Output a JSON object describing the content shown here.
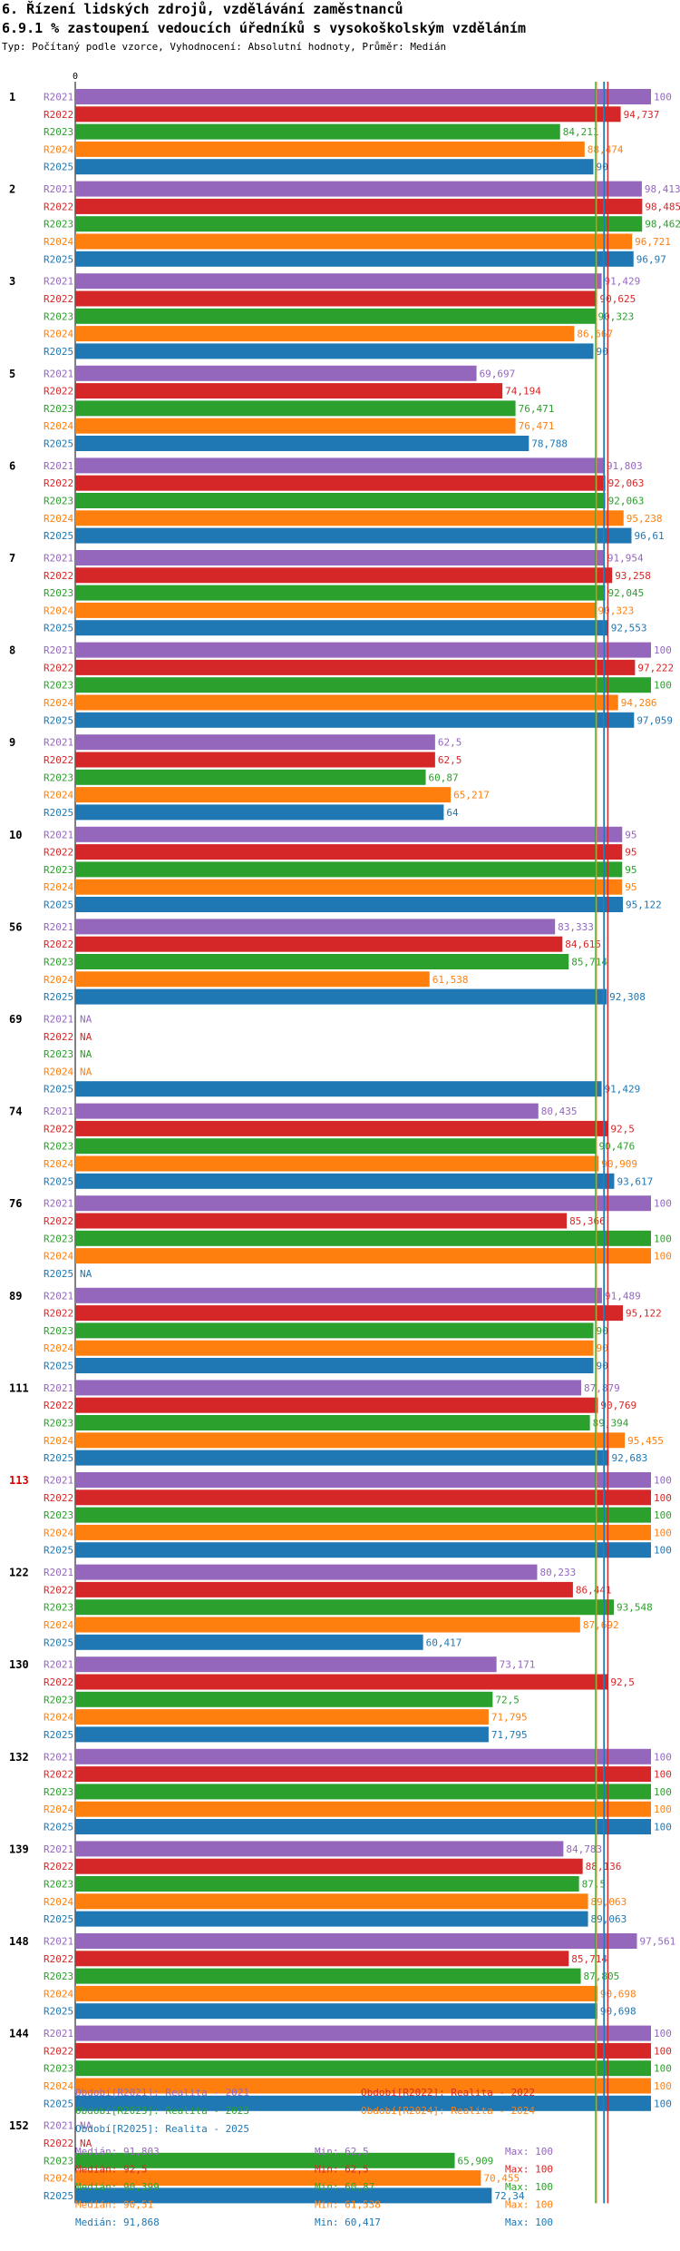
{
  "header": {
    "title": "6. Řízení lidských zdrojů, vzdělávání zaměstnanců",
    "subtitle": "6.9.1 % zastoupení vedoucích úředníků s vysokoškolským vzděláním",
    "meta": "Typ: Počítaný podle vzorce, Vyhodnocení: Absolutní hodnoty, Průměr: Medián"
  },
  "chart_data": {
    "type": "bar",
    "orientation": "horizontal",
    "axis": {
      "zero_label": "0",
      "xlim": [
        0,
        100
      ]
    },
    "series_names": [
      "R2021",
      "R2022",
      "R2023",
      "R2024",
      "R2025"
    ],
    "colors": [
      "#9467bd",
      "#d62728",
      "#2ca02c",
      "#ff7f0e",
      "#1f77b4"
    ],
    "na_text": "NA",
    "groups": [
      {
        "label": "1",
        "highlight": false,
        "values": [
          "100",
          "94,737",
          "84,211",
          "88,474",
          "90"
        ]
      },
      {
        "label": "2",
        "highlight": false,
        "values": [
          "98,413",
          "98,485",
          "98,462",
          "96,721",
          "96,97"
        ]
      },
      {
        "label": "3",
        "highlight": false,
        "values": [
          "91,429",
          "90,625",
          "90,323",
          "86,667",
          "90"
        ]
      },
      {
        "label": "5",
        "highlight": false,
        "values": [
          "69,697",
          "74,194",
          "76,471",
          "76,471",
          "78,788"
        ]
      },
      {
        "label": "6",
        "highlight": false,
        "values": [
          "91,803",
          "92,063",
          "92,063",
          "95,238",
          "96,61"
        ]
      },
      {
        "label": "7",
        "highlight": false,
        "values": [
          "91,954",
          "93,258",
          "92,045",
          "90,323",
          "92,553"
        ]
      },
      {
        "label": "8",
        "highlight": false,
        "values": [
          "100",
          "97,222",
          "100",
          "94,286",
          "97,059"
        ]
      },
      {
        "label": "9",
        "highlight": false,
        "values": [
          "62,5",
          "62,5",
          "60,87",
          "65,217",
          "64"
        ]
      },
      {
        "label": "10",
        "highlight": false,
        "values": [
          "95",
          "95",
          "95",
          "95",
          "95,122"
        ]
      },
      {
        "label": "56",
        "highlight": false,
        "values": [
          "83,333",
          "84,615",
          "85,714",
          "61,538",
          "92,308"
        ]
      },
      {
        "label": "69",
        "highlight": false,
        "values": [
          null,
          null,
          null,
          null,
          "91,429"
        ]
      },
      {
        "label": "74",
        "highlight": false,
        "values": [
          "80,435",
          "92,5",
          "90,476",
          "90,909",
          "93,617"
        ]
      },
      {
        "label": "76",
        "highlight": false,
        "values": [
          "100",
          "85,366",
          "100",
          "100",
          null
        ]
      },
      {
        "label": "89",
        "highlight": false,
        "values": [
          "91,489",
          "95,122",
          "90",
          "90",
          "90"
        ]
      },
      {
        "label": "111",
        "highlight": false,
        "values": [
          "87,879",
          "90,769",
          "89,394",
          "95,455",
          "92,683"
        ]
      },
      {
        "label": "113",
        "highlight": true,
        "values": [
          "100",
          "100",
          "100",
          "100",
          "100"
        ]
      },
      {
        "label": "122",
        "highlight": false,
        "values": [
          "80,233",
          "86,441",
          "93,548",
          "87,692",
          "60,417"
        ]
      },
      {
        "label": "130",
        "highlight": false,
        "values": [
          "73,171",
          "92,5",
          "72,5",
          "71,795",
          "71,795"
        ]
      },
      {
        "label": "132",
        "highlight": false,
        "values": [
          "100",
          "100",
          "100",
          "100",
          "100"
        ]
      },
      {
        "label": "139",
        "highlight": false,
        "values": [
          "84,783",
          "88,136",
          "87,5",
          "89,063",
          "89,063"
        ]
      },
      {
        "label": "148",
        "highlight": false,
        "values": [
          "97,561",
          "85,714",
          "87,805",
          "90,698",
          "90,698"
        ]
      },
      {
        "label": "144",
        "highlight": false,
        "values": [
          "100",
          "100",
          "100",
          "100",
          "100"
        ]
      },
      {
        "label": "152",
        "highlight": false,
        "values": [
          null,
          null,
          "65,909",
          "70,455",
          "72,34"
        ]
      }
    ],
    "median_lines": [
      {
        "series": "R2021",
        "value": 91.803
      },
      {
        "series": "R2022",
        "value": 92.5
      },
      {
        "series": "R2023",
        "value": 90.399
      },
      {
        "series": "R2024",
        "value": 90.51
      },
      {
        "series": "R2025",
        "value": 91.868
      }
    ],
    "legend": [
      {
        "text": "Období[R2021]: Realita - 2021"
      },
      {
        "text": "Období[R2022]: Realita - 2022"
      },
      {
        "text": "Období[R2023]: Realita - 2023"
      },
      {
        "text": "Období[R2024]: Realita - 2024"
      },
      {
        "text": "Období[R2025]: Realita - 2025"
      }
    ],
    "stats": [
      {
        "median": "Medián: 91,803",
        "min": "Min: 62,5",
        "max": "Max: 100"
      },
      {
        "median": "Medián: 92,5",
        "min": "Min: 62,5",
        "max": "Max: 100"
      },
      {
        "median": "Medián: 90,399",
        "min": "Min: 60,87",
        "max": "Max: 100"
      },
      {
        "median": "Medián: 90,51",
        "min": "Min: 61,538",
        "max": "Max: 100"
      },
      {
        "median": "Medián: 91,868",
        "min": "Min: 60,417",
        "max": "Max: 100"
      }
    ]
  }
}
